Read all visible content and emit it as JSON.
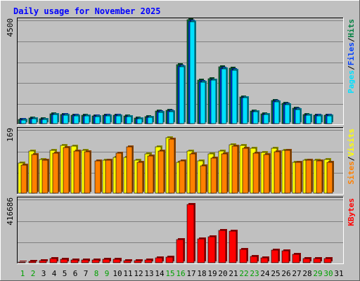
{
  "title": "Daily usage for November 2025",
  "colors": {
    "background": "#C0C0C0",
    "panel": "#C0C0C0",
    "title": "#0000FF",
    "hits": "#008040",
    "files": "#0040FF",
    "pages": "#00E0FF",
    "visits": "#FFFF00",
    "sites": "#FF8000",
    "kbytes": "#FF0000",
    "weekend_day": "#00A000",
    "weekday": "#000000"
  },
  "chart_data": [
    {
      "type": "bar",
      "panel": "hits-files-pages",
      "ylabel_parts": [
        "Pages",
        "/",
        "Files",
        "/",
        "Hits"
      ],
      "ymax_label": "4500",
      "ylim": [
        0,
        4500
      ],
      "categories": [
        "1",
        "2",
        "3",
        "4",
        "5",
        "6",
        "7",
        "8",
        "9",
        "10",
        "11",
        "12",
        "13",
        "14",
        "15",
        "16",
        "17",
        "18",
        "19",
        "20",
        "21",
        "22",
        "23",
        "24",
        "25",
        "26",
        "27",
        "28",
        "29",
        "30",
        "31"
      ],
      "series": [
        {
          "name": "Hits",
          "values": [
            180,
            230,
            200,
            430,
            410,
            370,
            360,
            340,
            370,
            370,
            330,
            240,
            300,
            540,
            590,
            2550,
            4500,
            1870,
            1940,
            2460,
            2390,
            1150,
            550,
            430,
            990,
            870,
            660,
            390,
            370,
            380,
            0
          ]
        },
        {
          "name": "Files",
          "values": [
            170,
            220,
            190,
            410,
            390,
            350,
            340,
            320,
            350,
            350,
            310,
            220,
            280,
            510,
            560,
            2500,
            4450,
            1830,
            1900,
            2410,
            2350,
            1130,
            530,
            410,
            970,
            850,
            640,
            370,
            350,
            360,
            0
          ]
        },
        {
          "name": "Pages",
          "values": [
            160,
            200,
            170,
            390,
            370,
            330,
            320,
            300,
            330,
            330,
            290,
            210,
            260,
            480,
            520,
            2470,
            4400,
            1800,
            1880,
            2380,
            2320,
            1110,
            510,
            390,
            950,
            830,
            620,
            350,
            330,
            340,
            0
          ]
        }
      ]
    },
    {
      "type": "bar",
      "panel": "visits-sites",
      "ylabel_parts": [
        "Sites",
        "/",
        "Visits"
      ],
      "ymax_label": "169",
      "ylim": [
        0,
        169
      ],
      "categories": [
        "1",
        "2",
        "3",
        "4",
        "5",
        "6",
        "7",
        "8",
        "9",
        "10",
        "11",
        "12",
        "13",
        "14",
        "15",
        "16",
        "17",
        "18",
        "19",
        "20",
        "21",
        "22",
        "23",
        "24",
        "25",
        "26",
        "27",
        "28",
        "29",
        "30",
        "31"
      ],
      "series": [
        {
          "name": "Visits",
          "values": [
            80,
            112,
            90,
            114,
            126,
            124,
            114,
            0,
            88,
            95,
            95,
            88,
            104,
            122,
            147,
            82,
            112,
            86,
            104,
            112,
            128,
            126,
            118,
            108,
            118,
            114,
            82,
            88,
            88,
            90,
            0
          ]
        },
        {
          "name": "Sites",
          "values": [
            74,
            102,
            88,
            106,
            120,
            112,
            110,
            85,
            88,
            105,
            122,
            82,
            98,
            112,
            143,
            86,
            104,
            72,
            92,
            104,
            124,
            118,
            106,
            102,
            110,
            114,
            82,
            88,
            85,
            82,
            0
          ]
        }
      ]
    },
    {
      "type": "bar",
      "panel": "kbytes",
      "ylabel_parts": [
        "KBytes"
      ],
      "ymax_label": "416686",
      "ylim": [
        0,
        416686
      ],
      "categories": [
        "1",
        "2",
        "3",
        "4",
        "5",
        "6",
        "7",
        "8",
        "9",
        "10",
        "11",
        "12",
        "13",
        "14",
        "15",
        "16",
        "17",
        "18",
        "19",
        "20",
        "21",
        "22",
        "23",
        "24",
        "25",
        "26",
        "27",
        "28",
        "29",
        "30",
        "31"
      ],
      "series": [
        {
          "name": "KBytes",
          "values": [
            6000,
            10000,
            12000,
            27000,
            22000,
            20000,
            20000,
            18000,
            25000,
            22000,
            15000,
            13000,
            20000,
            33000,
            35000,
            152000,
            381000,
            157000,
            168000,
            212000,
            207000,
            87000,
            40000,
            33000,
            82000,
            78000,
            54000,
            26000,
            28000,
            28000,
            0
          ]
        }
      ]
    }
  ]
}
